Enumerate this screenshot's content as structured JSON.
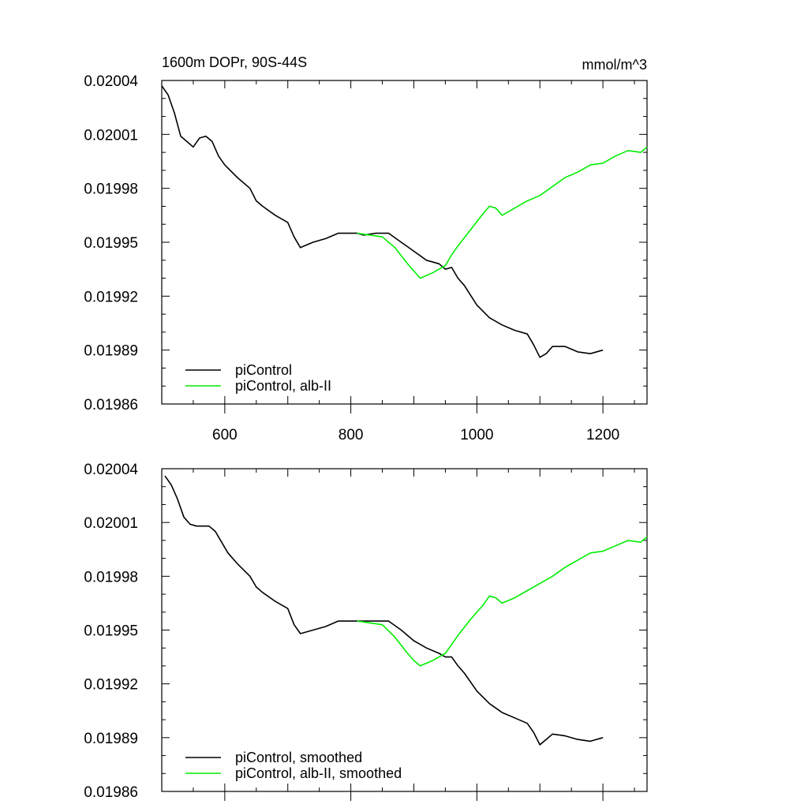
{
  "chart_data": [
    {
      "type": "line",
      "title": "1600m DOPr, 90S-44S",
      "units": "mmol/m^3",
      "xlim": [
        500,
        1270
      ],
      "ylim": [
        0.01986,
        0.02004
      ],
      "x_ticks": [
        600,
        800,
        1000,
        1200
      ],
      "x_tick_labels": [
        "600",
        "800",
        "1000",
        "1200"
      ],
      "y_ticks": [
        0.01986,
        0.01989,
        0.01992,
        0.01995,
        0.01998,
        0.02001,
        0.02004
      ],
      "y_tick_labels": [
        "0.01986",
        "0.01989",
        "0.01992",
        "0.01995",
        "0.01998",
        "0.02001",
        "0.02004"
      ],
      "legend_position": "bottom-left",
      "series": [
        {
          "name": "piControl",
          "color": "#000000",
          "x": [
            500,
            510,
            520,
            530,
            540,
            550,
            560,
            570,
            580,
            590,
            600,
            620,
            640,
            650,
            660,
            680,
            700,
            710,
            720,
            740,
            760,
            780,
            800,
            810,
            820,
            840,
            860,
            880,
            900,
            920,
            940,
            950,
            960,
            970,
            980,
            1000,
            1020,
            1040,
            1060,
            1080,
            1090,
            1100,
            1110,
            1120,
            1140,
            1160,
            1180,
            1200
          ],
          "y": [
            0.020037,
            0.020032,
            0.020022,
            0.020009,
            0.020006,
            0.020003,
            0.020008,
            0.020009,
            0.020006,
            0.019998,
            0.019993,
            0.019986,
            0.01998,
            0.019973,
            0.01997,
            0.019965,
            0.019961,
            0.019953,
            0.019947,
            0.01995,
            0.019952,
            0.019955,
            0.019955,
            0.019955,
            0.019954,
            0.019955,
            0.019955,
            0.01995,
            0.019945,
            0.01994,
            0.019938,
            0.019935,
            0.019936,
            0.01993,
            0.019926,
            0.019915,
            0.019908,
            0.019904,
            0.019901,
            0.019899,
            0.019893,
            0.019886,
            0.019888,
            0.019892,
            0.019892,
            0.019889,
            0.019888,
            0.01989
          ]
        },
        {
          "name": "piControl, alb-II",
          "color": "#00ee00",
          "x": [
            810,
            830,
            850,
            870,
            890,
            900,
            910,
            930,
            950,
            960,
            970,
            990,
            1010,
            1020,
            1030,
            1040,
            1060,
            1080,
            1100,
            1120,
            1140,
            1160,
            1180,
            1200,
            1220,
            1240,
            1260,
            1270
          ],
          "y": [
            0.019955,
            0.019954,
            0.019953,
            0.019947,
            0.019938,
            0.019934,
            0.01993,
            0.019933,
            0.019937,
            0.019943,
            0.019948,
            0.019957,
            0.019966,
            0.01997,
            0.019969,
            0.019965,
            0.019969,
            0.019973,
            0.019976,
            0.019981,
            0.019986,
            0.019989,
            0.019993,
            0.019994,
            0.019998,
            0.020001,
            0.02,
            0.020003
          ]
        }
      ]
    },
    {
      "type": "line",
      "title": "",
      "units": "",
      "xlim": [
        500,
        1270
      ],
      "ylim": [
        0.01986,
        0.02004
      ],
      "x_ticks": [
        600,
        800,
        1000,
        1200
      ],
      "x_tick_labels": [],
      "y_ticks": [
        0.01986,
        0.01989,
        0.01992,
        0.01995,
        0.01998,
        0.02001,
        0.02004
      ],
      "y_tick_labels": [
        "0.01986",
        "0.01989",
        "0.01992",
        "0.01995",
        "0.01998",
        "0.02001",
        "0.02004"
      ],
      "legend_position": "bottom-left",
      "series": [
        {
          "name": "piControl, smoothed",
          "color": "#000000",
          "x": [
            505,
            515,
            525,
            535,
            545,
            555,
            565,
            575,
            585,
            595,
            605,
            620,
            640,
            650,
            660,
            680,
            700,
            710,
            720,
            740,
            760,
            780,
            800,
            810,
            820,
            840,
            860,
            880,
            900,
            920,
            940,
            950,
            960,
            970,
            980,
            1000,
            1020,
            1040,
            1060,
            1080,
            1090,
            1100,
            1110,
            1120,
            1140,
            1160,
            1180,
            1200
          ],
          "y": [
            0.020036,
            0.020031,
            0.020023,
            0.020013,
            0.020009,
            0.020008,
            0.020008,
            0.020008,
            0.020005,
            0.019999,
            0.019993,
            0.019987,
            0.01998,
            0.019974,
            0.019971,
            0.019966,
            0.019962,
            0.019953,
            0.019948,
            0.01995,
            0.019952,
            0.019955,
            0.019955,
            0.019955,
            0.019955,
            0.019955,
            0.019955,
            0.01995,
            0.019944,
            0.01994,
            0.019937,
            0.019935,
            0.019935,
            0.01993,
            0.019926,
            0.019916,
            0.019909,
            0.019904,
            0.019901,
            0.019898,
            0.019893,
            0.019886,
            0.019889,
            0.019892,
            0.019891,
            0.019889,
            0.019888,
            0.01989
          ]
        },
        {
          "name": "piControl, alb-II, smoothed",
          "color": "#00ee00",
          "x": [
            810,
            830,
            850,
            870,
            890,
            900,
            910,
            930,
            950,
            960,
            970,
            990,
            1010,
            1020,
            1030,
            1040,
            1060,
            1080,
            1100,
            1120,
            1140,
            1160,
            1180,
            1200,
            1220,
            1240,
            1260,
            1270
          ],
          "y": [
            0.019955,
            0.019954,
            0.019953,
            0.019946,
            0.019937,
            0.019933,
            0.01993,
            0.019933,
            0.019937,
            0.019942,
            0.019947,
            0.019956,
            0.019964,
            0.019969,
            0.019968,
            0.019965,
            0.019968,
            0.019972,
            0.019976,
            0.01998,
            0.019985,
            0.019989,
            0.019993,
            0.019994,
            0.019997,
            0.02,
            0.019999,
            0.020002
          ]
        }
      ]
    }
  ]
}
